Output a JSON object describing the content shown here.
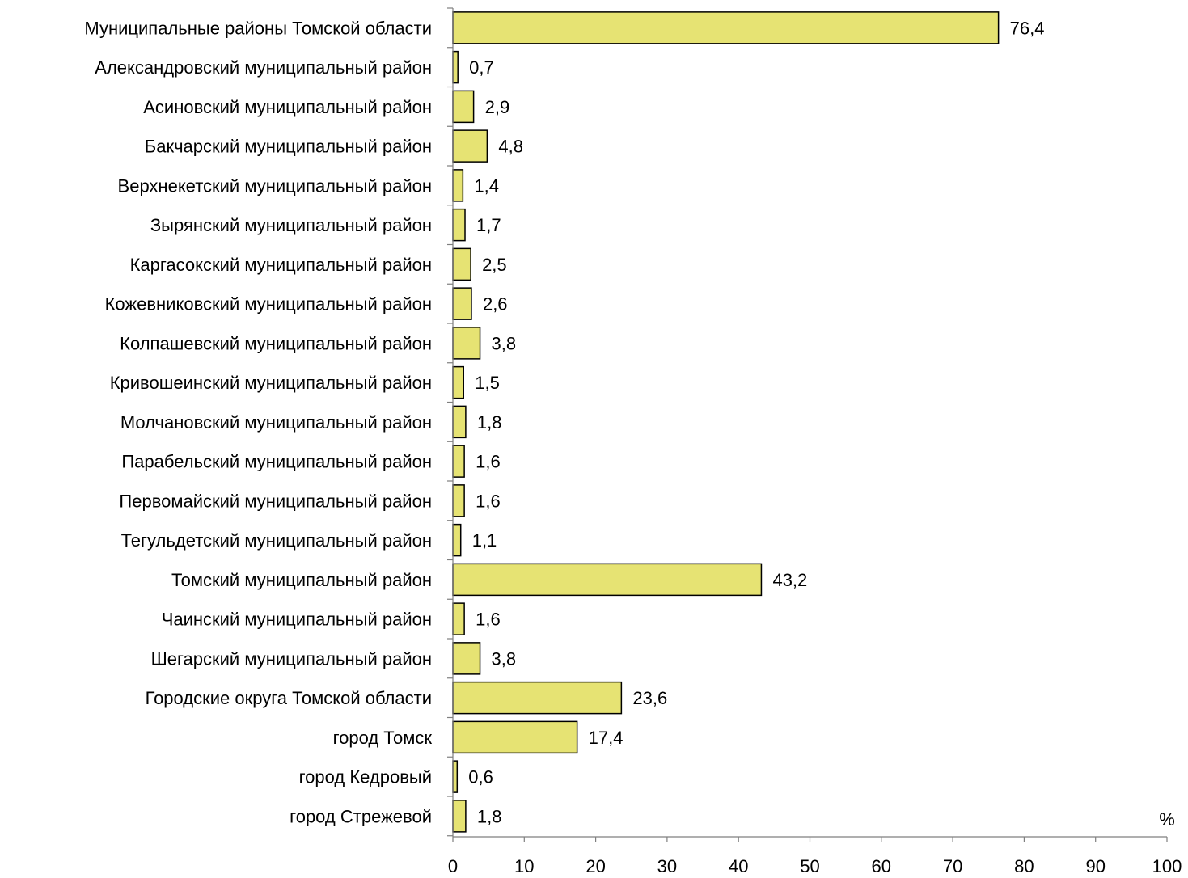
{
  "chart_data": {
    "type": "bar",
    "orientation": "horizontal",
    "title": "",
    "xlabel": "",
    "ylabel": "",
    "unit_label": "%",
    "xlim": [
      0,
      100
    ],
    "x_ticks": [
      0,
      10,
      20,
      30,
      40,
      50,
      60,
      70,
      80,
      90,
      100
    ],
    "grid": false,
    "legend": "none",
    "bar_color": "#e6e373",
    "bar_edge_color": "#000000",
    "categories": [
      "Муниципальные районы Томской области",
      "Александровский муниципальный район",
      "Асиновский муниципальный район",
      "Бакчарский муниципальный район",
      "Верхнекетский муниципальный район",
      "Зырянский муниципальный район",
      "Каргасокский муниципальный район",
      "Кожевниковский муниципальный район",
      "Колпашевский муниципальный район",
      "Кривошеинский муниципальный район",
      "Молчановский муниципальный район",
      "Парабельский муниципальный район",
      "Первомайский муниципальный район",
      "Тегульдетский муниципальный район",
      "Томский муниципальный район",
      "Чаинский муниципальный район",
      "Шегарский муниципальный район",
      "Городские округа Томской области",
      "город Томск",
      "город Кедровый",
      "город Стрежевой"
    ],
    "values": [
      76.4,
      0.7,
      2.9,
      4.8,
      1.4,
      1.7,
      2.5,
      2.6,
      3.8,
      1.5,
      1.8,
      1.6,
      1.6,
      1.1,
      43.2,
      1.6,
      3.8,
      23.6,
      17.4,
      0.6,
      1.8
    ],
    "value_labels": [
      "76,4",
      "0,7",
      "2,9",
      "4,8",
      "1,4",
      "1,7",
      "2,5",
      "2,6",
      "3,8",
      "1,5",
      "1,8",
      "1,6",
      "1,6",
      "1,1",
      "43,2",
      "1,6",
      "3,8",
      "23,6",
      "17,4",
      "0,6",
      "1,8"
    ]
  }
}
